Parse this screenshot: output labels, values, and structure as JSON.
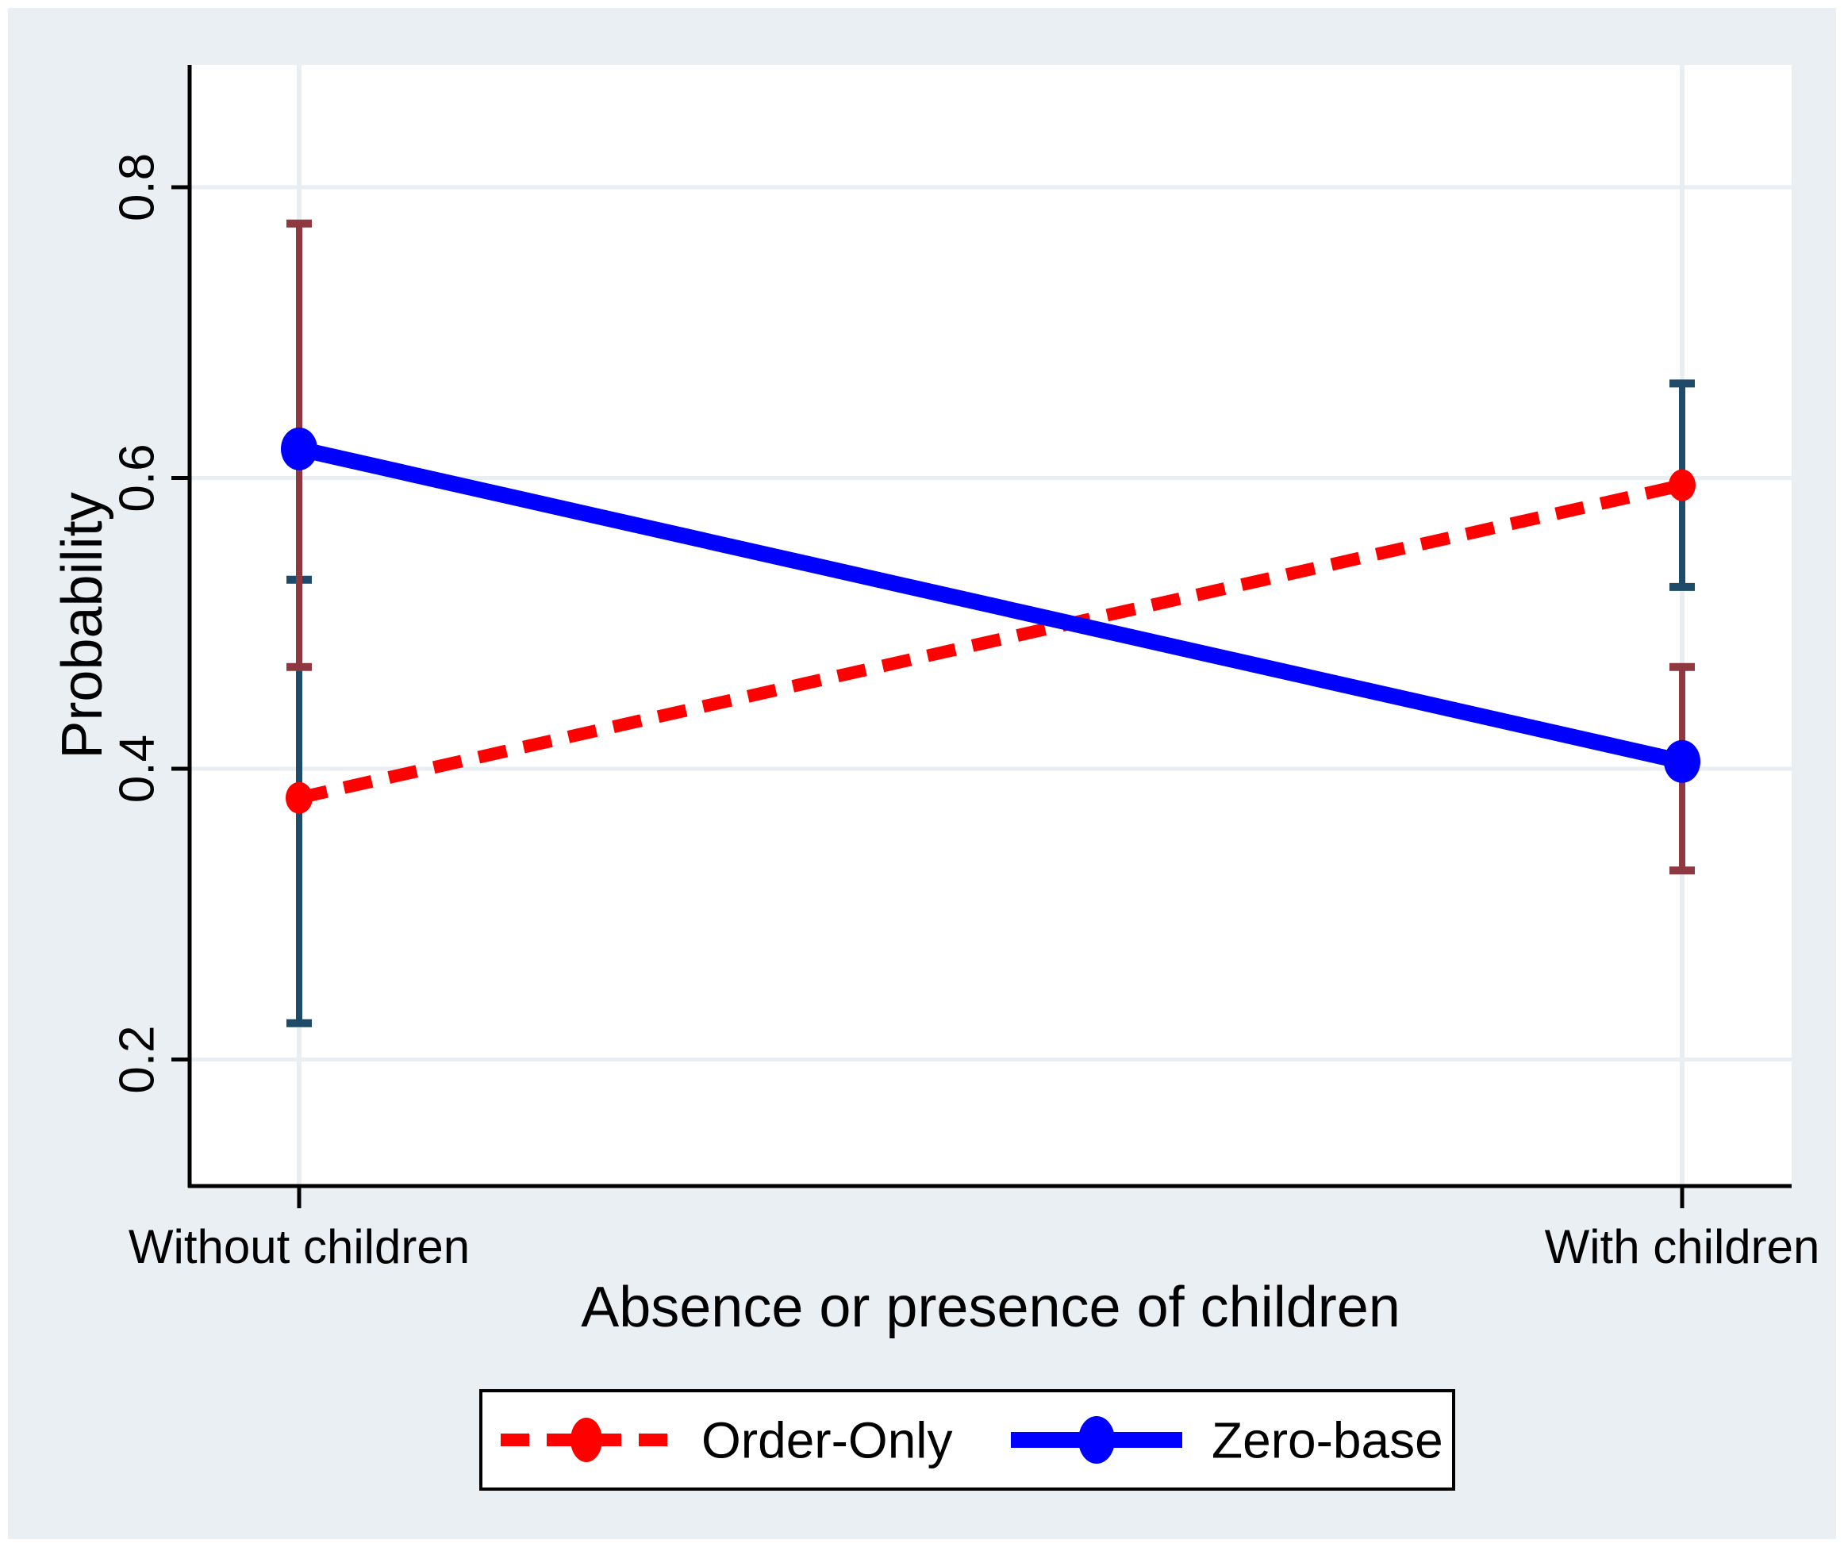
{
  "figure": {
    "background_color": "#e9eff2",
    "frame_color": "#ffffff",
    "plot_background": "#ffffff",
    "grid_color": "#e8eef1",
    "axis_color": "#000000"
  },
  "chart_data": {
    "type": "line",
    "title": "",
    "xlabel": "Absence or presence of children",
    "ylabel": "Probability",
    "categories": [
      "Without children",
      "With children"
    ],
    "ytick_values": [
      0.2,
      0.4,
      0.6,
      0.8
    ],
    "ytick_labels": [
      "0.2",
      "0.4",
      "0.6",
      "0.8"
    ],
    "ylim": [
      0.113,
      0.884
    ],
    "grid": true,
    "legend_position": "bottom-center",
    "series": [
      {
        "name": "Order-Only",
        "color": "#ff0000",
        "line_style": "dashed",
        "marker": "circle",
        "values": [
          0.38,
          0.595
        ],
        "ci_color": "#1d4b69",
        "ci": [
          [
            0.225,
            0.53
          ],
          [
            0.525,
            0.665
          ]
        ]
      },
      {
        "name": "Zero-base",
        "color": "#0000ff",
        "line_style": "solid",
        "marker": "circle",
        "values": [
          0.62,
          0.405
        ],
        "ci_color": "#90383f",
        "ci": [
          [
            0.47,
            0.775
          ],
          [
            0.33,
            0.47
          ]
        ]
      }
    ]
  }
}
